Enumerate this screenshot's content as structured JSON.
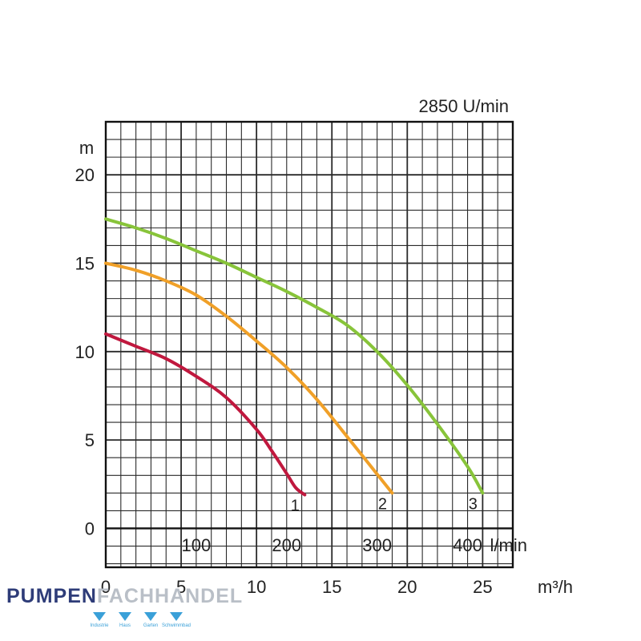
{
  "chart_data": {
    "type": "line",
    "title": "2850 U/min",
    "ylabel": "m",
    "xlabel_primary": "m³/h",
    "xlabel_secondary": "l/min",
    "xlim": [
      0,
      27
    ],
    "ylim": [
      -2.2,
      23
    ],
    "grid": true,
    "y_ticks": [
      0,
      5,
      10,
      15,
      20
    ],
    "x_ticks": [
      0,
      5,
      10,
      15,
      20,
      25
    ],
    "secondary_x_ticks": [
      {
        "label": "100",
        "value": 6
      },
      {
        "label": "200",
        "value": 12
      },
      {
        "label": "300",
        "value": 18
      },
      {
        "label": "400",
        "value": 24
      }
    ],
    "series": [
      {
        "name": "1",
        "color": "#c0183e",
        "x": [
          0,
          2,
          4,
          6,
          8,
          10,
          11,
          12,
          12.6,
          13.2
        ],
        "y": [
          11,
          10.3,
          9.6,
          8.6,
          7.4,
          5.6,
          4.4,
          3.1,
          2.3,
          1.9
        ]
      },
      {
        "name": "2",
        "color": "#f0a028",
        "x": [
          0,
          2,
          4,
          6,
          8,
          10,
          12,
          14,
          16,
          17.5,
          19
        ],
        "y": [
          15,
          14.6,
          14,
          13.2,
          12,
          10.6,
          9.1,
          7.3,
          5.2,
          3.6,
          2
        ]
      },
      {
        "name": "3",
        "color": "#88c43a",
        "x": [
          0,
          2,
          4,
          6,
          8,
          10,
          12,
          14,
          16,
          18,
          20,
          22,
          24,
          25
        ],
        "y": [
          17.5,
          17,
          16.4,
          15.7,
          15,
          14.2,
          13.4,
          12.5,
          11.5,
          10,
          8.1,
          5.9,
          3.5,
          2
        ]
      }
    ]
  },
  "logo": {
    "part1": "PUMPEN",
    "part2": "FACHHANDEL",
    "tags": [
      "Industrie",
      "Haus",
      "Garten",
      "Schwimmbad"
    ]
  }
}
